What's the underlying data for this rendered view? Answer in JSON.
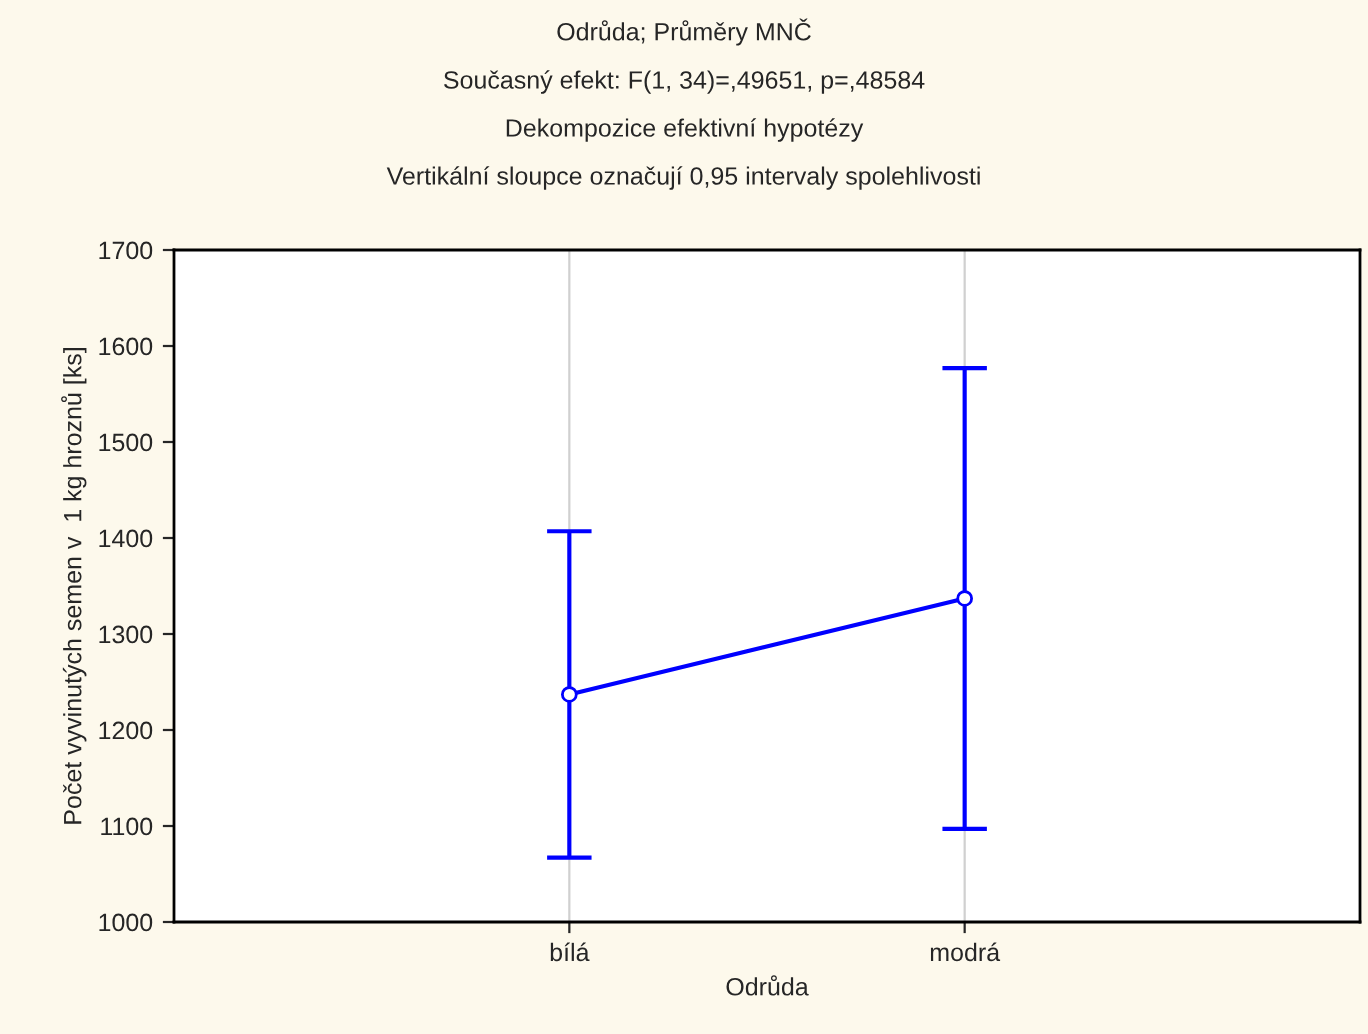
{
  "chart_data": {
    "type": "line",
    "title": "Odrůda; Průměry MNČ",
    "subtitle": "Současný efekt: F(1, 34)=,49651, p=,48584\nDekompozice efektivní hypotézy\nVertikální sloupce označují 0,95 intervaly spolehlivosti",
    "xlabel": "Odrůda",
    "ylabel": "Počet vyvinutých semen v  1 kg hroznů [ks]",
    "categories": [
      "bílá",
      "modrá"
    ],
    "series": [
      {
        "color": "#0000ff",
        "values": [
          1237,
          1337
        ],
        "errors": [
          170,
          240
        ]
      }
    ],
    "ylim": [
      1000,
      1700
    ],
    "yticks": [
      1000,
      1100,
      1200,
      1300,
      1400,
      1500,
      1600,
      1700
    ],
    "grid": "x",
    "marker": "circle",
    "line_style": "solid",
    "legend": false
  }
}
